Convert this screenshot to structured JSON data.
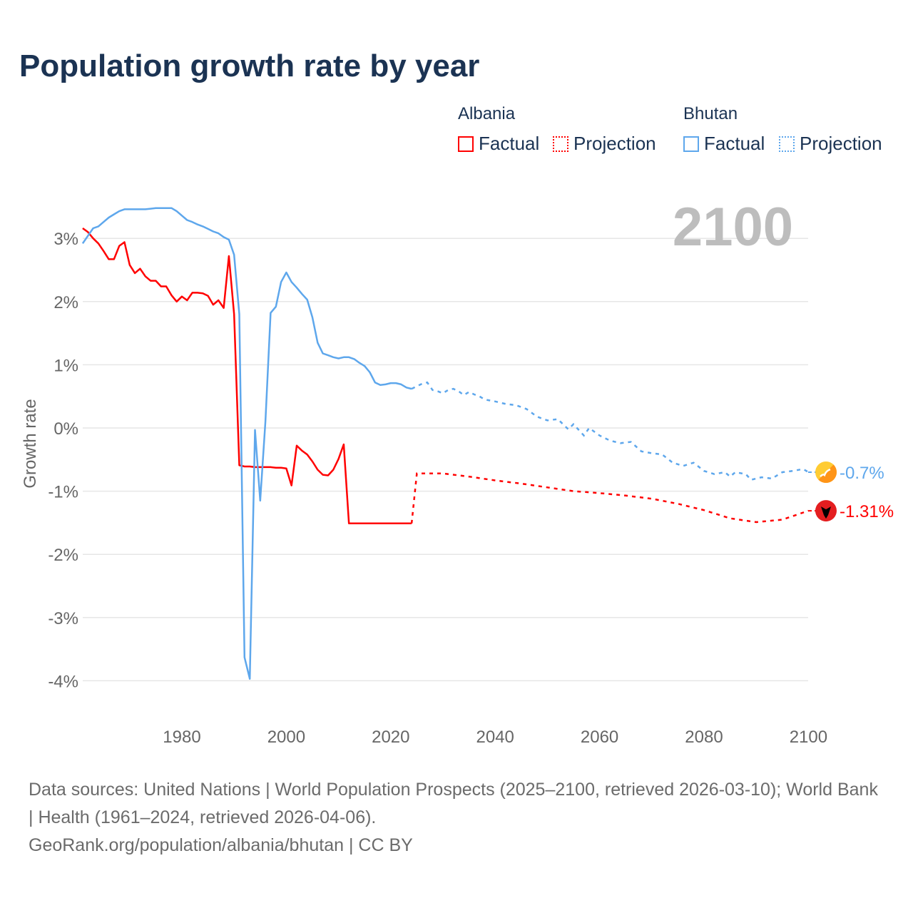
{
  "chart_data": {
    "type": "line",
    "title": "Population growth rate by year",
    "ylabel": "Growth rate",
    "xlabel": "",
    "xlim": [
      1961,
      2100
    ],
    "ylim": [
      -4.5,
      3.8
    ],
    "x_ticks": [
      1980,
      2000,
      2020,
      2040,
      2060,
      2080,
      2100
    ],
    "y_ticks": [
      3,
      2,
      1,
      0,
      -1,
      -2,
      -3,
      -4
    ],
    "y_tick_labels": [
      "3%",
      "2%",
      "1%",
      "0%",
      "-1%",
      "-2%",
      "-3%",
      "-4%"
    ],
    "grid": true,
    "current_year": "2100",
    "legend": {
      "placement": "top-right",
      "groups": [
        {
          "name": "Albania",
          "factual": "Factual",
          "projection": "Projection"
        },
        {
          "name": "Bhutan",
          "factual": "Factual",
          "projection": "Projection"
        }
      ]
    },
    "series": [
      {
        "name": "Albania",
        "color": "#ff0000",
        "end_label": "-1.31%",
        "flag": "albania-flag",
        "factual": [
          [
            1961,
            3.16
          ],
          [
            1962,
            3.1
          ],
          [
            1963,
            3.0
          ],
          [
            1964,
            2.92
          ],
          [
            1965,
            2.8
          ],
          [
            1966,
            2.67
          ],
          [
            1967,
            2.67
          ],
          [
            1968,
            2.88
          ],
          [
            1969,
            2.94
          ],
          [
            1970,
            2.58
          ],
          [
            1971,
            2.45
          ],
          [
            1972,
            2.52
          ],
          [
            1973,
            2.4
          ],
          [
            1974,
            2.33
          ],
          [
            1975,
            2.33
          ],
          [
            1976,
            2.24
          ],
          [
            1977,
            2.24
          ],
          [
            1978,
            2.1
          ],
          [
            1979,
            2.0
          ],
          [
            1980,
            2.08
          ],
          [
            1981,
            2.02
          ],
          [
            1982,
            2.14
          ],
          [
            1983,
            2.14
          ],
          [
            1984,
            2.13
          ],
          [
            1985,
            2.09
          ],
          [
            1986,
            1.95
          ],
          [
            1987,
            2.02
          ],
          [
            1988,
            1.9
          ],
          [
            1989,
            2.72
          ],
          [
            1990,
            1.8
          ],
          [
            1991,
            -0.59
          ],
          [
            1992,
            -0.61
          ],
          [
            1993,
            -0.61
          ],
          [
            1994,
            -0.62
          ],
          [
            1995,
            -0.62
          ],
          [
            1996,
            -0.62
          ],
          [
            1997,
            -0.62
          ],
          [
            1998,
            -0.63
          ],
          [
            1999,
            -0.63
          ],
          [
            2000,
            -0.64
          ],
          [
            2001,
            -0.91
          ],
          [
            2002,
            -0.28
          ],
          [
            2003,
            -0.36
          ],
          [
            2004,
            -0.42
          ],
          [
            2005,
            -0.53
          ],
          [
            2006,
            -0.66
          ],
          [
            2007,
            -0.74
          ],
          [
            2008,
            -0.75
          ],
          [
            2009,
            -0.66
          ],
          [
            2010,
            -0.49
          ],
          [
            2011,
            -0.26
          ],
          [
            2012,
            -1.51
          ],
          [
            2013,
            -1.51
          ],
          [
            2014,
            -1.51
          ],
          [
            2015,
            -1.51
          ],
          [
            2016,
            -1.51
          ],
          [
            2017,
            -1.51
          ],
          [
            2018,
            -1.51
          ],
          [
            2019,
            -1.51
          ],
          [
            2020,
            -1.51
          ],
          [
            2021,
            -1.51
          ],
          [
            2022,
            -1.51
          ],
          [
            2023,
            -1.51
          ],
          [
            2024,
            -1.51
          ]
        ],
        "projection": [
          [
            2024,
            -1.51
          ],
          [
            2025,
            -0.72
          ],
          [
            2030,
            -0.72
          ],
          [
            2035,
            -0.77
          ],
          [
            2040,
            -0.83
          ],
          [
            2045,
            -0.88
          ],
          [
            2050,
            -0.94
          ],
          [
            2055,
            -1.0
          ],
          [
            2060,
            -1.03
          ],
          [
            2065,
            -1.07
          ],
          [
            2070,
            -1.12
          ],
          [
            2075,
            -1.2
          ],
          [
            2080,
            -1.3
          ],
          [
            2085,
            -1.43
          ],
          [
            2090,
            -1.49
          ],
          [
            2095,
            -1.45
          ],
          [
            2100,
            -1.31
          ]
        ]
      },
      {
        "name": "Bhutan",
        "color": "#5ea7ec",
        "end_label": "-0.7%",
        "flag": "bhutan-flag",
        "factual": [
          [
            1961,
            2.92
          ],
          [
            1962,
            3.04
          ],
          [
            1963,
            3.16
          ],
          [
            1964,
            3.19
          ],
          [
            1965,
            3.26
          ],
          [
            1966,
            3.33
          ],
          [
            1967,
            3.38
          ],
          [
            1968,
            3.43
          ],
          [
            1969,
            3.46
          ],
          [
            1970,
            3.46
          ],
          [
            1971,
            3.46
          ],
          [
            1972,
            3.46
          ],
          [
            1973,
            3.46
          ],
          [
            1974,
            3.47
          ],
          [
            1975,
            3.48
          ],
          [
            1976,
            3.48
          ],
          [
            1977,
            3.48
          ],
          [
            1978,
            3.48
          ],
          [
            1979,
            3.43
          ],
          [
            1980,
            3.36
          ],
          [
            1981,
            3.29
          ],
          [
            1982,
            3.26
          ],
          [
            1983,
            3.22
          ],
          [
            1984,
            3.19
          ],
          [
            1985,
            3.15
          ],
          [
            1986,
            3.11
          ],
          [
            1987,
            3.08
          ],
          [
            1988,
            3.02
          ],
          [
            1989,
            2.98
          ],
          [
            1990,
            2.74
          ],
          [
            1991,
            1.8
          ],
          [
            1992,
            -3.63
          ],
          [
            1993,
            -3.97
          ],
          [
            1994,
            -0.03
          ],
          [
            1995,
            -1.15
          ],
          [
            1996,
            0.1
          ],
          [
            1997,
            1.82
          ],
          [
            1998,
            1.92
          ],
          [
            1999,
            2.31
          ],
          [
            2000,
            2.46
          ],
          [
            2001,
            2.31
          ],
          [
            2002,
            2.22
          ],
          [
            2003,
            2.12
          ],
          [
            2004,
            2.03
          ],
          [
            2005,
            1.75
          ],
          [
            2006,
            1.35
          ],
          [
            2007,
            1.18
          ],
          [
            2008,
            1.15
          ],
          [
            2009,
            1.12
          ],
          [
            2010,
            1.1
          ],
          [
            2011,
            1.12
          ],
          [
            2012,
            1.12
          ],
          [
            2013,
            1.09
          ],
          [
            2014,
            1.03
          ],
          [
            2015,
            0.98
          ],
          [
            2016,
            0.88
          ],
          [
            2017,
            0.72
          ],
          [
            2018,
            0.68
          ],
          [
            2019,
            0.69
          ],
          [
            2020,
            0.71
          ],
          [
            2021,
            0.71
          ],
          [
            2022,
            0.69
          ],
          [
            2023,
            0.64
          ],
          [
            2024,
            0.62
          ]
        ],
        "projection": [
          [
            2024,
            0.62
          ],
          [
            2025,
            0.66
          ],
          [
            2026,
            0.7
          ],
          [
            2027,
            0.72
          ],
          [
            2028,
            0.6
          ],
          [
            2029,
            0.58
          ],
          [
            2030,
            0.55
          ],
          [
            2031,
            0.6
          ],
          [
            2032,
            0.62
          ],
          [
            2033,
            0.58
          ],
          [
            2034,
            0.52
          ],
          [
            2035,
            0.57
          ],
          [
            2036,
            0.53
          ],
          [
            2037,
            0.5
          ],
          [
            2038,
            0.45
          ],
          [
            2040,
            0.42
          ],
          [
            2042,
            0.38
          ],
          [
            2044,
            0.36
          ],
          [
            2046,
            0.3
          ],
          [
            2048,
            0.18
          ],
          [
            2050,
            0.12
          ],
          [
            2052,
            0.14
          ],
          [
            2054,
            -0.02
          ],
          [
            2055,
            0.06
          ],
          [
            2057,
            -0.12
          ],
          [
            2058,
            0.0
          ],
          [
            2060,
            -0.12
          ],
          [
            2062,
            -0.2
          ],
          [
            2064,
            -0.24
          ],
          [
            2066,
            -0.22
          ],
          [
            2068,
            -0.37
          ],
          [
            2070,
            -0.4
          ],
          [
            2072,
            -0.42
          ],
          [
            2074,
            -0.55
          ],
          [
            2076,
            -0.6
          ],
          [
            2078,
            -0.55
          ],
          [
            2080,
            -0.68
          ],
          [
            2082,
            -0.73
          ],
          [
            2084,
            -0.7
          ],
          [
            2085,
            -0.77
          ],
          [
            2086,
            -0.7
          ],
          [
            2088,
            -0.73
          ],
          [
            2089,
            -0.82
          ],
          [
            2091,
            -0.78
          ],
          [
            2093,
            -0.8
          ],
          [
            2095,
            -0.7
          ],
          [
            2097,
            -0.68
          ],
          [
            2099,
            -0.65
          ],
          [
            2100,
            -0.7
          ]
        ]
      }
    ]
  },
  "footer": {
    "sources": "Data sources: United Nations | World Population Prospects (2025–2100, retrieved 2026-03-10); World Bank | Health (1961–2024, retrieved 2026-04-06).",
    "credit": "GeoRank.org/population/albania/bhutan | CC BY"
  }
}
